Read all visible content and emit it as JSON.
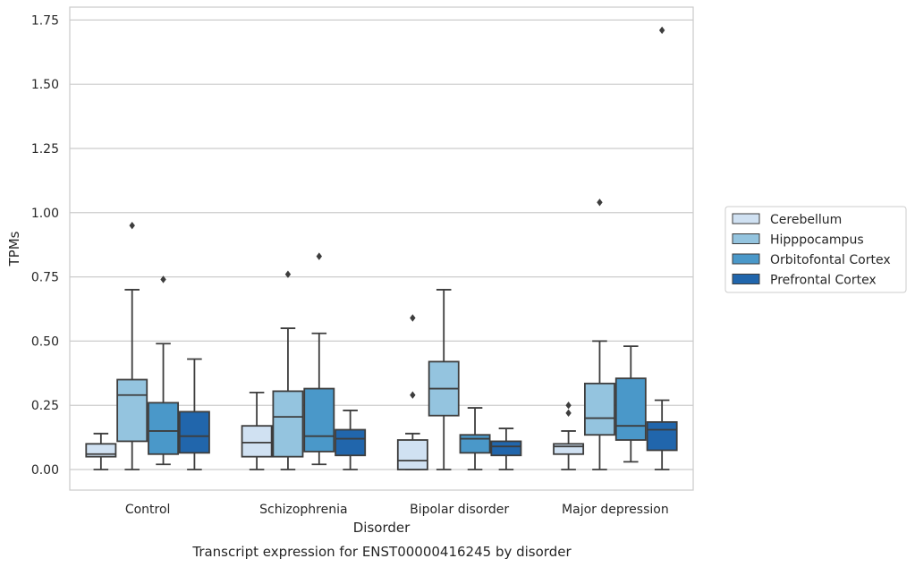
{
  "chart_data": {
    "type": "box",
    "xlabel": "Disorder",
    "ylabel": "TPMs",
    "caption": "Transcript expression for ENST00000416245 by disorder",
    "ylim": [
      -0.08,
      1.8
    ],
    "yticks": [
      "0.00",
      "0.25",
      "0.50",
      "0.75",
      "1.00",
      "1.25",
      "1.50",
      "1.75"
    ],
    "grid": true,
    "legend_position": "right",
    "categories": [
      "Control",
      "Schizophrenia",
      "Bipolar disorder",
      "Major depression"
    ],
    "series": [
      {
        "name": "Cerebellum",
        "color": "#d0e1f2",
        "boxes": [
          {
            "whislo": 0.0,
            "q1": 0.05,
            "med": 0.06,
            "q3": 0.1,
            "whishi": 0.14,
            "fliers": []
          },
          {
            "whislo": 0.0,
            "q1": 0.05,
            "med": 0.105,
            "q3": 0.17,
            "whishi": 0.3,
            "fliers": []
          },
          {
            "whislo": 0.0,
            "q1": 0.0,
            "med": 0.035,
            "q3": 0.115,
            "whishi": 0.14,
            "fliers": [
              0.29,
              0.59
            ]
          },
          {
            "whislo": 0.0,
            "q1": 0.06,
            "med": 0.09,
            "q3": 0.1,
            "whishi": 0.15,
            "fliers": [
              0.22,
              0.25
            ]
          }
        ]
      },
      {
        "name": "Hipppocampus",
        "color": "#94c4df",
        "boxes": [
          {
            "whislo": 0.0,
            "q1": 0.11,
            "med": 0.29,
            "q3": 0.35,
            "whishi": 0.7,
            "fliers": [
              0.95
            ]
          },
          {
            "whislo": 0.0,
            "q1": 0.05,
            "med": 0.205,
            "q3": 0.305,
            "whishi": 0.55,
            "fliers": [
              0.76
            ]
          },
          {
            "whislo": 0.0,
            "q1": 0.21,
            "med": 0.315,
            "q3": 0.42,
            "whishi": 0.7,
            "fliers": []
          },
          {
            "whislo": 0.0,
            "q1": 0.135,
            "med": 0.2,
            "q3": 0.335,
            "whishi": 0.5,
            "fliers": [
              1.04
            ]
          }
        ]
      },
      {
        "name": "Orbitofontal Cortex",
        "color": "#4a98c9",
        "boxes": [
          {
            "whislo": 0.02,
            "q1": 0.06,
            "med": 0.15,
            "q3": 0.26,
            "whishi": 0.49,
            "fliers": [
              0.74
            ]
          },
          {
            "whislo": 0.02,
            "q1": 0.07,
            "med": 0.13,
            "q3": 0.315,
            "whishi": 0.53,
            "fliers": [
              0.83
            ]
          },
          {
            "whislo": 0.0,
            "q1": 0.065,
            "med": 0.12,
            "q3": 0.135,
            "whishi": 0.24,
            "fliers": []
          },
          {
            "whislo": 0.03,
            "q1": 0.115,
            "med": 0.17,
            "q3": 0.355,
            "whishi": 0.48,
            "fliers": []
          }
        ]
      },
      {
        "name": "Prefrontal Cortex",
        "color": "#2166ac",
        "boxes": [
          {
            "whislo": 0.0,
            "q1": 0.065,
            "med": 0.13,
            "q3": 0.225,
            "whishi": 0.43,
            "fliers": []
          },
          {
            "whislo": 0.0,
            "q1": 0.055,
            "med": 0.12,
            "q3": 0.155,
            "whishi": 0.23,
            "fliers": []
          },
          {
            "whislo": 0.0,
            "q1": 0.055,
            "med": 0.09,
            "q3": 0.11,
            "whishi": 0.16,
            "fliers": []
          },
          {
            "whislo": 0.0,
            "q1": 0.075,
            "med": 0.155,
            "q3": 0.185,
            "whishi": 0.27,
            "fliers": [
              1.71
            ]
          }
        ]
      }
    ]
  }
}
